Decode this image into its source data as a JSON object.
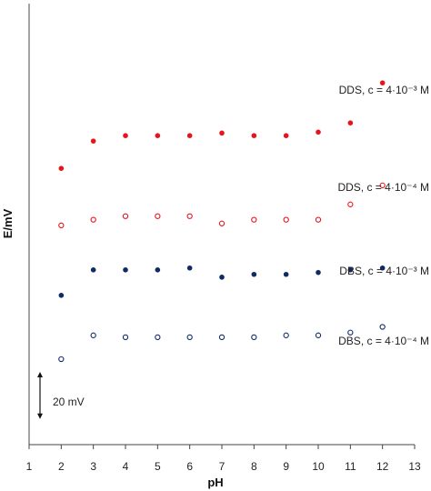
{
  "chart_data": {
    "type": "scatter",
    "xlabel": "pH",
    "ylabel": "E/mV",
    "xlim": [
      1,
      13
    ],
    "x_ticks": [
      1,
      2,
      3,
      4,
      5,
      6,
      7,
      8,
      9,
      10,
      11,
      12,
      13
    ],
    "y_axis_note": "no numeric tick labels on y-axis",
    "scale_bar": {
      "label": "20 mV",
      "value_mV": 20
    },
    "colors": {
      "dds": "#e8141c",
      "dbs": "#0f2a66"
    },
    "series": [
      {
        "name": "DDS, c = 4·10⁻³ M",
        "marker": "filled-circle",
        "color": "#e8141c",
        "x": [
          2,
          3,
          4,
          5,
          6,
          7,
          8,
          9,
          10,
          11,
          12
        ],
        "y": [
          117.3,
          128.9,
          131.2,
          131.2,
          131.2,
          132.3,
          131.2,
          131.2,
          132.7,
          136.6,
          153.6
        ]
      },
      {
        "name": "DDS, c = 4·10⁻⁴ M",
        "marker": "open-circle",
        "color": "#e8141c",
        "x": [
          2,
          3,
          4,
          5,
          6,
          7,
          8,
          9,
          10,
          11,
          12
        ],
        "y": [
          93.1,
          95.5,
          97.0,
          97.0,
          97.0,
          93.9,
          95.5,
          95.5,
          95.5,
          102.0,
          110.1
        ]
      },
      {
        "name": "DBS, c = 4·10⁻³ M",
        "marker": "filled-circle",
        "color": "#0f2a66",
        "x": [
          2,
          3,
          4,
          5,
          6,
          7,
          8,
          9,
          10,
          11,
          12
        ],
        "y": [
          63.4,
          74.2,
          74.2,
          74.2,
          75.0,
          71.1,
          72.3,
          72.3,
          73.1,
          74.2,
          75.0
        ]
      },
      {
        "name": "DBS, c = 4·10⁻⁴ M",
        "marker": "open-circle",
        "color": "#0f2a66",
        "x": [
          2,
          3,
          4,
          5,
          6,
          7,
          8,
          9,
          10,
          11,
          12
        ],
        "y": [
          36.3,
          46.4,
          45.6,
          45.6,
          45.6,
          45.6,
          45.6,
          46.4,
          46.4,
          47.6,
          50.0
        ]
      }
    ]
  }
}
